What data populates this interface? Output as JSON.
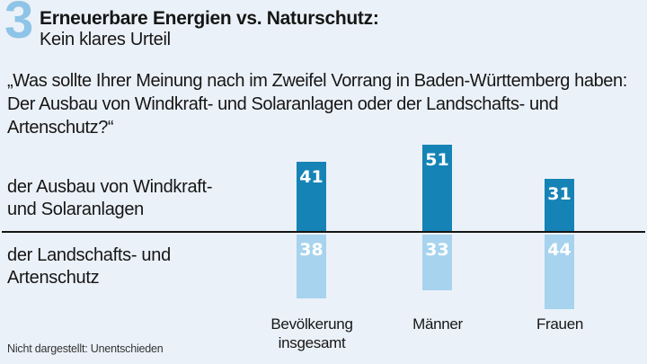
{
  "figure_number": "3",
  "header": {
    "title": "Erneuerbare Energien vs. Naturschutz:",
    "subtitle": "Kein klares Urteil"
  },
  "question": "„Was sollte Ihrer Meinung nach im Zweifel Vorrang in Baden-Württemberg haben: Der Ausbau von Windkraft- und Solaranlagen oder der Landschafts- und Artenschutz?“",
  "rows": [
    {
      "line1": "der Ausbau von Windkraft-",
      "line2": "und Solaranlagen"
    },
    {
      "line1": "der Landschafts- und",
      "line2": "Artenschutz"
    }
  ],
  "chart_data": {
    "type": "bar",
    "subtype": "diverging-vertical",
    "categories": [
      "Bevölkerung insgesamt",
      "Männer",
      "Frauen"
    ],
    "series": [
      {
        "name": "der Ausbau von Windkraft- und Solaranlagen",
        "direction": "up",
        "color": "#1583b5",
        "values": [
          41,
          51,
          31
        ]
      },
      {
        "name": "der Landschafts- und Artenschutz",
        "direction": "down",
        "color": "#a7d3ee",
        "values": [
          38,
          33,
          44
        ]
      }
    ],
    "title": "Erneuerbare Energien vs. Naturschutz: Kein klares Urteil",
    "value_labels_shown": true,
    "axis": "none (zero baseline only)",
    "note": "Nicht dargestellt: Unentschieden"
  },
  "footnote": "Nicht dargestellt: Unentschieden",
  "colors": {
    "background": "#ebf1f8",
    "bar_up": "#1583b5",
    "bar_down": "#a7d3ee",
    "figure_number": "#8ec4e7",
    "baseline": "#141414",
    "text": "#161616"
  }
}
